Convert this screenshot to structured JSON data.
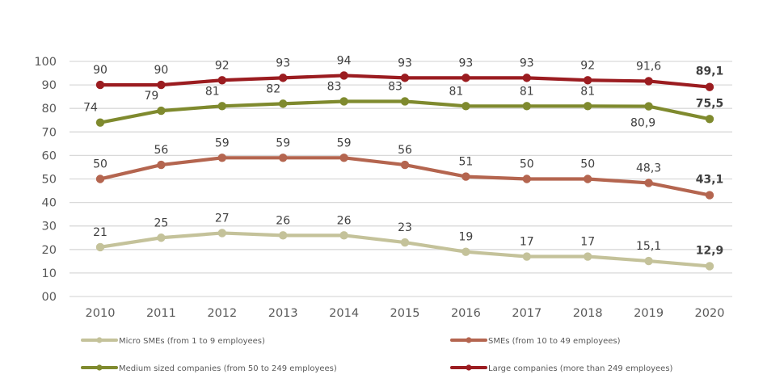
{
  "chart_data": {
    "type": "line",
    "title": "",
    "xlabel": "",
    "ylabel": "",
    "x": [
      "2010",
      "2011",
      "2012",
      "2013",
      "2014",
      "2015",
      "2016",
      "2017",
      "2018",
      "2019",
      "2020"
    ],
    "ylim": [
      0,
      100
    ],
    "yticks": [
      0,
      10,
      20,
      30,
      40,
      50,
      60,
      70,
      80,
      90,
      100
    ],
    "ytick_labels": [
      "00",
      "10",
      "20",
      "30",
      "40",
      "50",
      "60",
      "70",
      "80",
      "90",
      "100"
    ],
    "grid": true,
    "legend_position": "bottom",
    "series": [
      {
        "name": "Micro SMEs (from 1 to 9 employees)",
        "color": "#c4c29a",
        "values": [
          21,
          25,
          27,
          26,
          26,
          23,
          19,
          17,
          17,
          15.1,
          12.9
        ],
        "labels": [
          "21",
          "25",
          "27",
          "26",
          "26",
          "23",
          "19",
          "17",
          "17",
          "15,1",
          "12,9"
        ],
        "label_position": [
          "above",
          "above",
          "above",
          "above",
          "above",
          "above",
          "above",
          "above",
          "above",
          "above",
          "above"
        ]
      },
      {
        "name": "SMEs (from 10 to 49 employees)",
        "color": "#b4654f",
        "values": [
          50,
          56,
          59,
          59,
          59,
          56,
          51,
          50,
          50,
          48.3,
          43.1
        ],
        "labels": [
          "50",
          "56",
          "59",
          "59",
          "59",
          "56",
          "51",
          "50",
          "50",
          "48,3",
          "43,1"
        ],
        "label_position": [
          "above",
          "above",
          "above",
          "above",
          "above",
          "above",
          "above",
          "above",
          "above",
          "above",
          "above"
        ]
      },
      {
        "name": "Medium sized companies (from 50 to 249 employees)",
        "color": "#7f8a2e",
        "values": [
          74,
          79,
          81,
          82,
          83,
          83,
          81,
          81,
          81,
          80.9,
          75.5
        ],
        "labels": [
          "74",
          "79",
          "81",
          "82",
          "83",
          "83",
          "81",
          "81",
          "81",
          "80,9",
          "75,5"
        ],
        "label_position": [
          "above-left",
          "above-left",
          "above-left",
          "above-left",
          "above-left",
          "above-left",
          "above-left",
          "above",
          "above",
          "below",
          "above"
        ]
      },
      {
        "name": "Large companies (more than 249 employees)",
        "color": "#9b1c20",
        "values": [
          90,
          90,
          92,
          93,
          94,
          93,
          93,
          93,
          92,
          91.6,
          89.1
        ],
        "labels": [
          "90",
          "90",
          "92",
          "93",
          "94",
          "93",
          "93",
          "93",
          "92",
          "91,6",
          "89,1"
        ],
        "label_position": [
          "above",
          "above",
          "above",
          "above",
          "above",
          "above",
          "above",
          "above",
          "above",
          "above",
          "above"
        ]
      }
    ],
    "bold_last_label": true
  }
}
